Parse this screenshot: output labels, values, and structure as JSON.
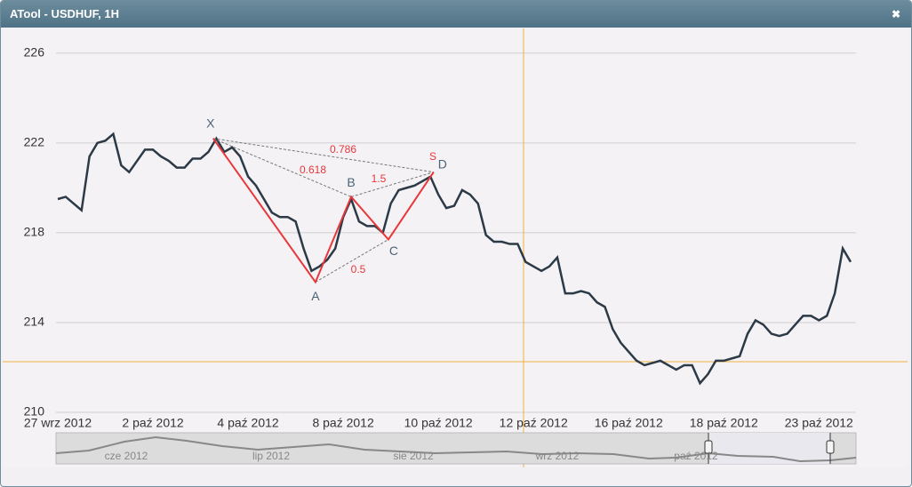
{
  "window": {
    "title": "ATool - USDHUF, 1H",
    "close": "✖"
  },
  "chart_data": {
    "type": "line",
    "categories": [
      "27 wrz 2012",
      null,
      null,
      null,
      null,
      null,
      null,
      null,
      null,
      null,
      null,
      null,
      "2 paź 2012",
      null,
      null,
      null,
      null,
      null,
      null,
      null,
      null,
      null,
      null,
      null,
      "4 paź 2012",
      null,
      null,
      null,
      null,
      null,
      null,
      null,
      null,
      null,
      null,
      null,
      "8 paź 2012",
      null,
      null,
      null,
      null,
      null,
      null,
      null,
      null,
      null,
      null,
      null,
      "10 paź 2012",
      null,
      null,
      null,
      null,
      null,
      null,
      null,
      null,
      null,
      null,
      null,
      "12 paź 2012",
      null,
      null,
      null,
      null,
      null,
      null,
      null,
      null,
      null,
      null,
      null,
      "16 paź 2012",
      null,
      null,
      null,
      null,
      null,
      null,
      null,
      null,
      null,
      null,
      null,
      "18 paź 2012",
      null,
      null,
      null,
      null,
      null,
      null,
      null,
      null,
      null,
      null,
      null,
      "23 paź 2012",
      null,
      null,
      null,
      null
    ],
    "values": [
      219.5,
      219.6,
      219.3,
      219.0,
      221.4,
      222.0,
      222.1,
      222.4,
      221.0,
      220.7,
      221.2,
      221.7,
      221.7,
      221.4,
      221.2,
      220.9,
      220.9,
      221.3,
      221.3,
      221.6,
      222.2,
      221.6,
      221.8,
      221.4,
      220.5,
      220.1,
      219.5,
      218.9,
      218.7,
      218.7,
      218.5,
      217.3,
      216.3,
      216.5,
      216.8,
      217.3,
      218.7,
      219.5,
      218.5,
      218.3,
      218.3,
      218.0,
      219.3,
      219.9,
      220.0,
      220.1,
      220.3,
      220.5,
      219.7,
      219.1,
      219.2,
      219.9,
      219.7,
      219.3,
      217.9,
      217.6,
      217.6,
      217.5,
      217.5,
      216.7,
      216.5,
      216.3,
      216.5,
      216.9,
      215.3,
      215.3,
      215.4,
      215.3,
      214.9,
      214.7,
      213.7,
      213.1,
      212.7,
      212.3,
      212.1,
      212.2,
      212.3,
      212.1,
      211.9,
      212.1,
      212.1,
      211.3,
      211.7,
      212.3,
      212.3,
      212.4,
      212.5,
      213.5,
      214.1,
      213.9,
      213.5,
      213.4,
      213.5,
      213.9,
      214.3,
      214.3,
      214.1,
      214.3,
      215.3,
      217.3,
      216.7
    ],
    "color": "#2b3a46",
    "ylim": [
      210,
      227.1
    ],
    "yticks": [
      210,
      214,
      218,
      222,
      226
    ],
    "grid": true,
    "pattern": {
      "labels": [
        "X",
        "A",
        "B",
        "C",
        "D"
      ],
      "values": [
        222.2,
        215.8,
        219.6,
        217.7,
        220.7
      ],
      "color": "#e8373b",
      "ratios": [
        "0.786",
        "0.618",
        "1.5",
        "0.5"
      ],
      "marker": "S"
    }
  },
  "navigator": {
    "labels": [
      "cze 2012",
      "lip 2012",
      "sie 2012",
      "wrz 2012",
      "paź 2012"
    ]
  }
}
